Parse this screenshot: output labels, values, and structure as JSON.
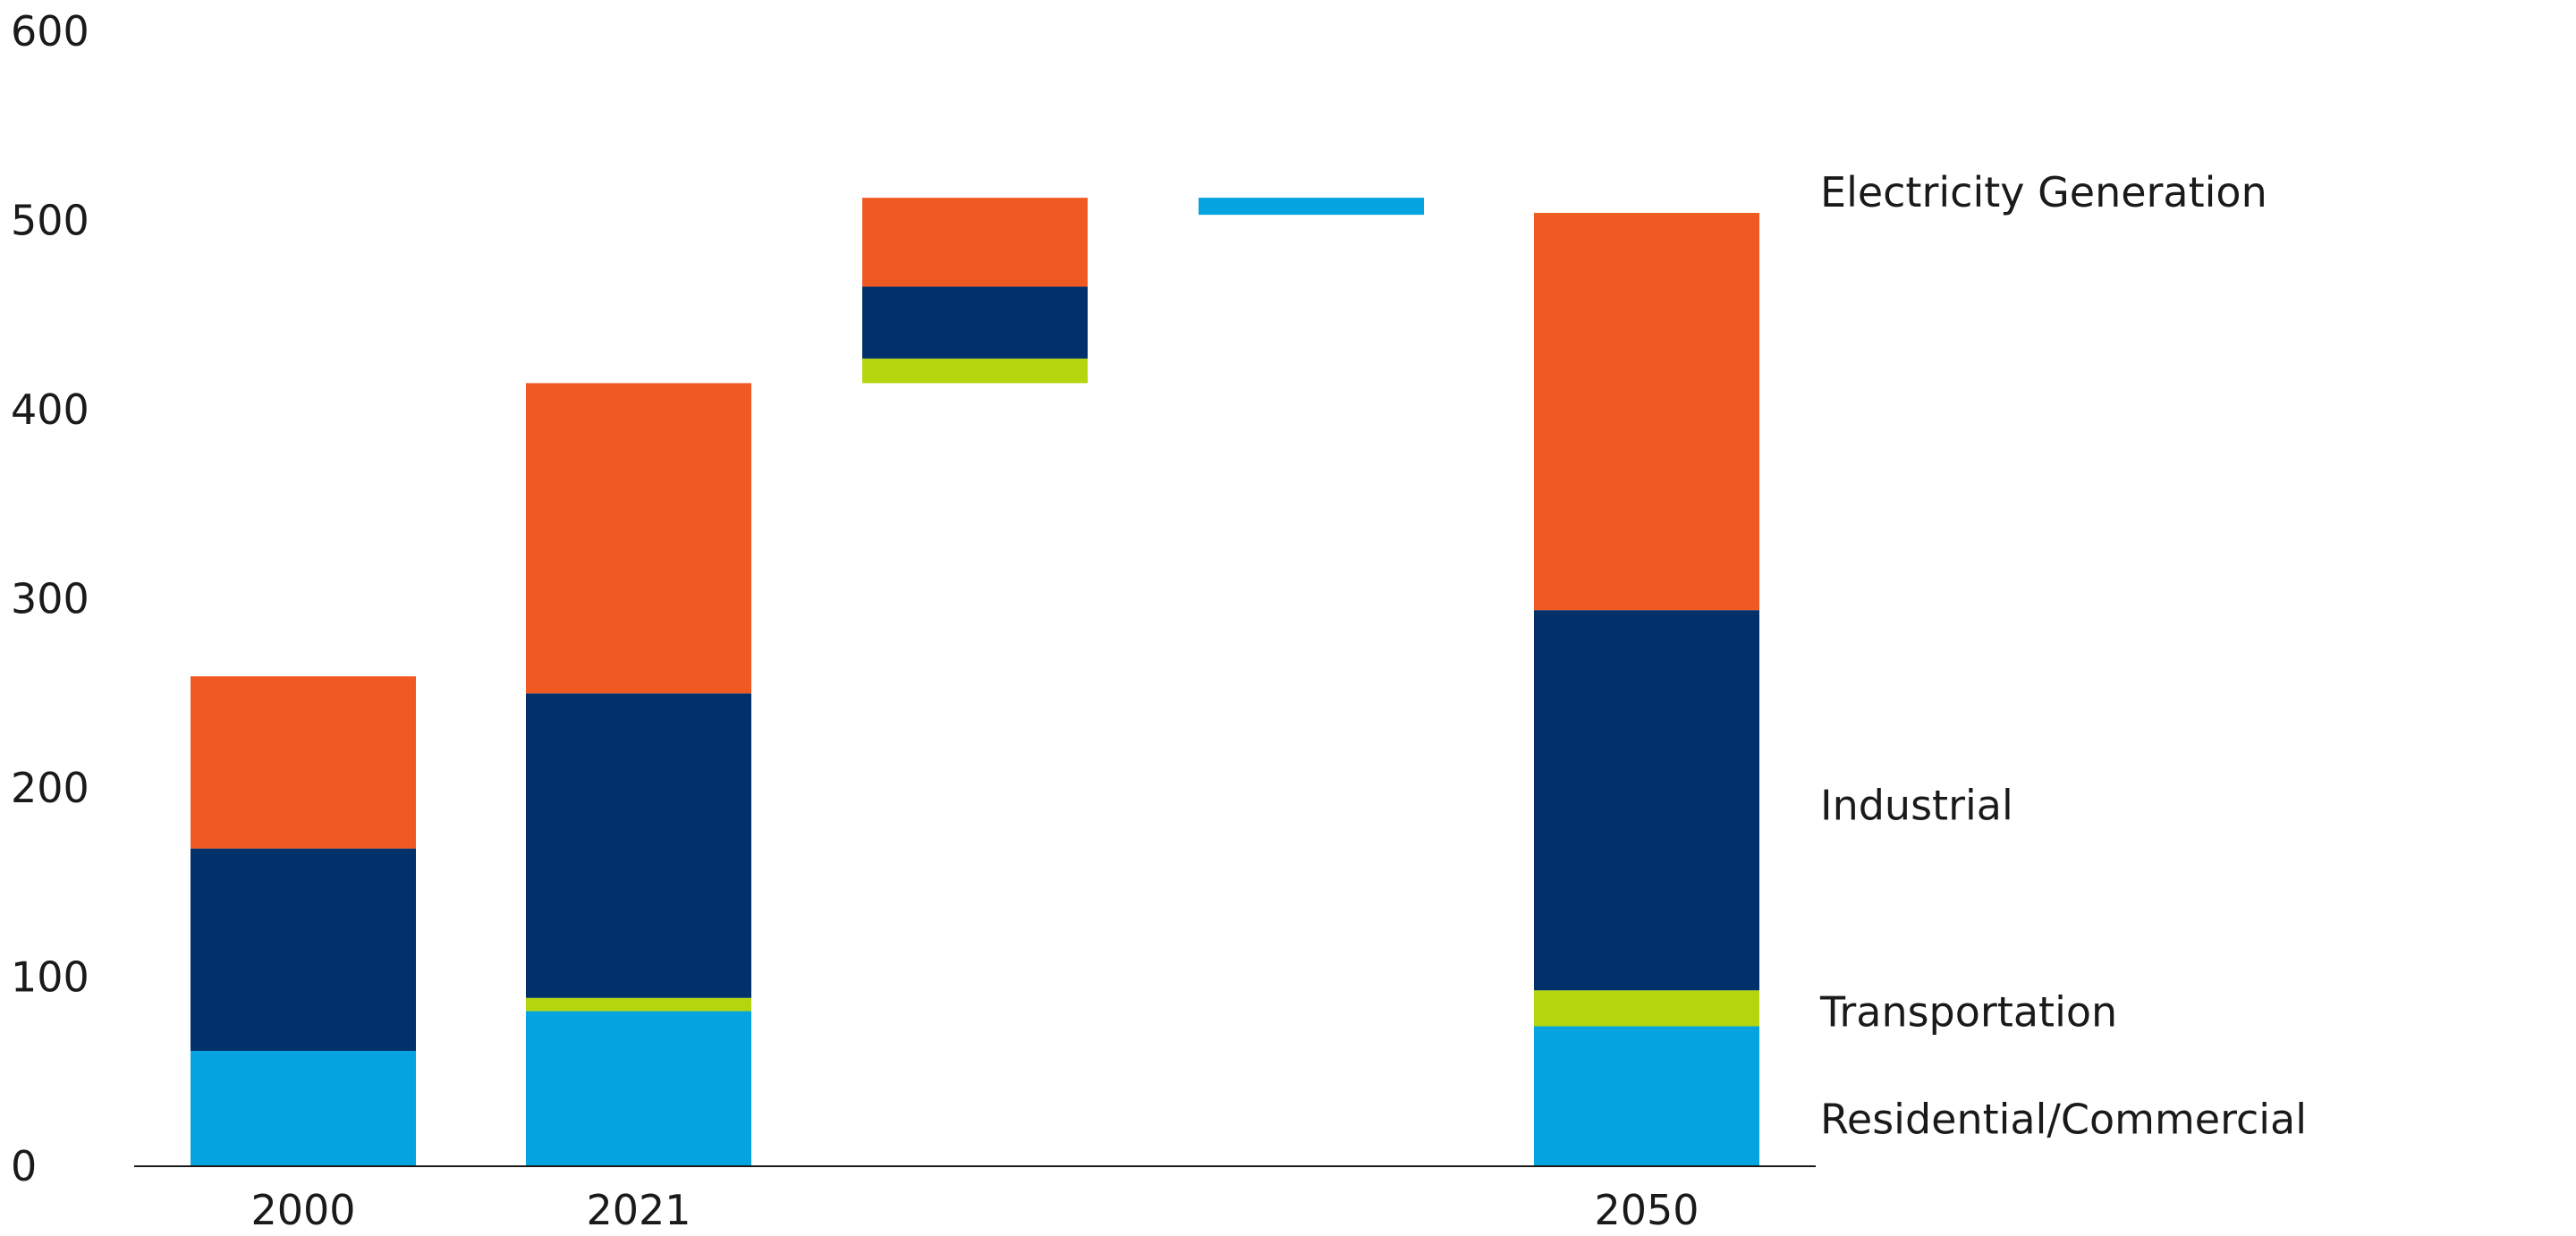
{
  "chart_data": {
    "type": "bar",
    "stacked": true,
    "waterfall": true,
    "title": "",
    "xlabel": "",
    "ylabel": "",
    "ylim": [
      0,
      600
    ],
    "yticks": [
      0,
      100,
      200,
      300,
      400,
      500,
      600
    ],
    "grid": false,
    "legend_placement": "right (inline labels beside last bar)",
    "categories": [
      "2000",
      "2021",
      "",
      "",
      "2050"
    ],
    "series": [
      {
        "name": "Residential/Commercial",
        "color": "#05A3E0",
        "values": [
          61,
          82,
          0,
          0,
          74
        ]
      },
      {
        "name": "Transportation",
        "color": "#B5D50F",
        "values": [
          0,
          7,
          0,
          0,
          19
        ]
      },
      {
        "name": "Industrial",
        "color": "#02306A",
        "values": [
          107,
          161,
          0,
          0,
          201
        ]
      },
      {
        "name": "Electricity Generation",
        "color": "#F05A22",
        "values": [
          91,
          164,
          0,
          0,
          210
        ]
      }
    ],
    "floating_segments": [
      {
        "category_index": 2,
        "series": "Transportation",
        "color": "#B5D50F",
        "from": 414,
        "to": 427
      },
      {
        "category_index": 2,
        "series": "Industrial",
        "color": "#02306A",
        "from": 427,
        "to": 465
      },
      {
        "category_index": 2,
        "series": "Electricity Generation",
        "color": "#F05A22",
        "from": 465,
        "to": 512
      },
      {
        "category_index": 3,
        "series": "Residential/Commercial",
        "color": "#05A3E0",
        "from": 503,
        "to": 512
      }
    ]
  }
}
